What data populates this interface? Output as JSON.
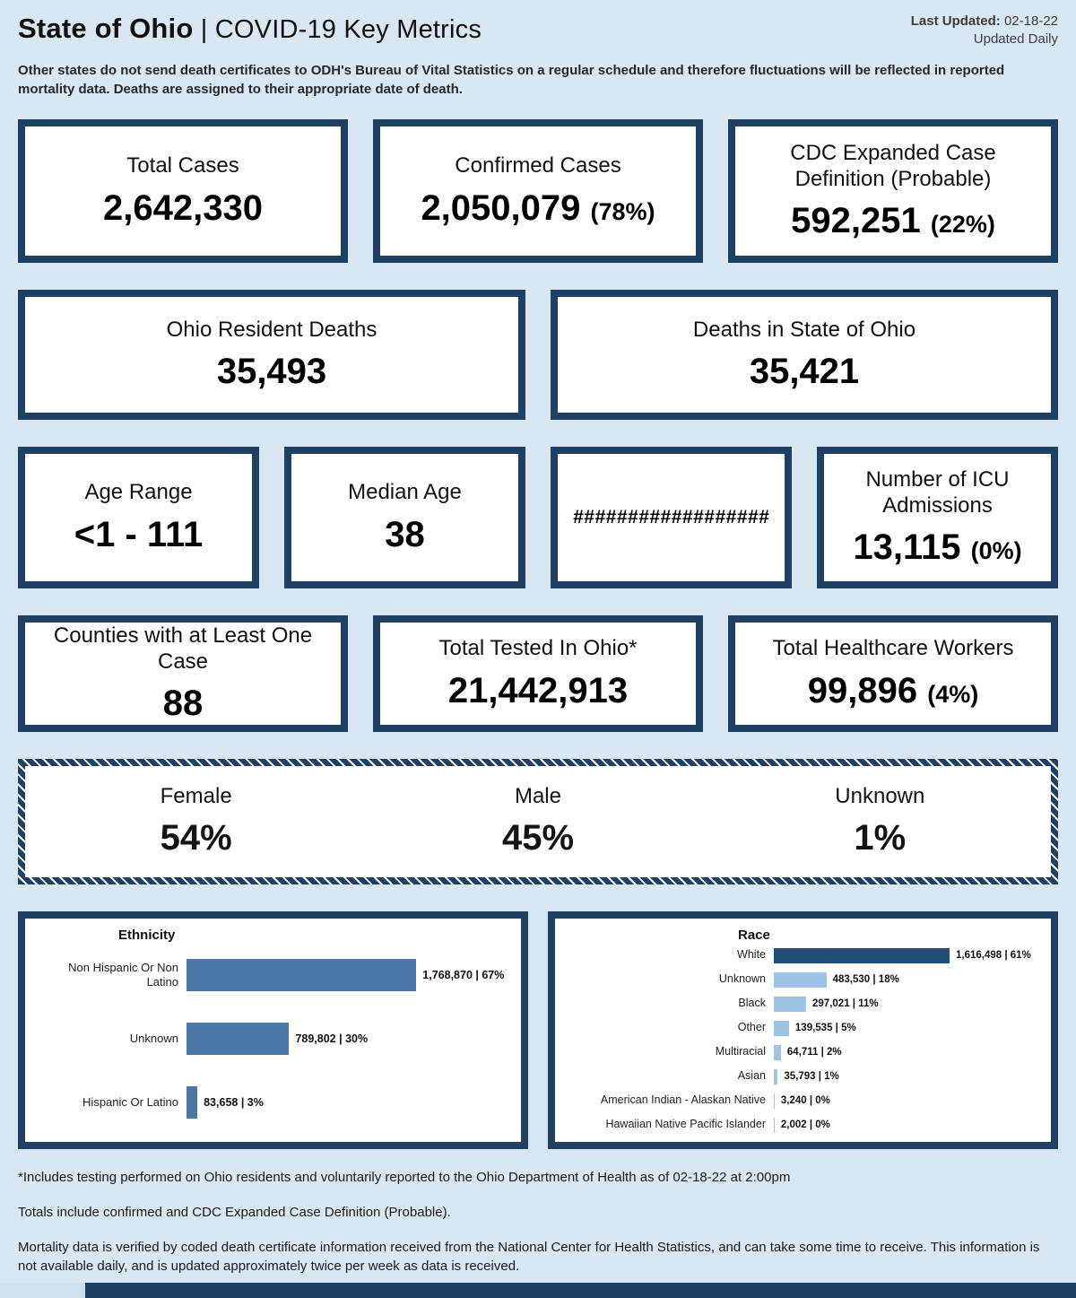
{
  "colors": {
    "navy": "#1e4163",
    "page_bg": "#d9e7f3",
    "card_bg": "#ffffff",
    "ethnicity_bar": "#4a76a8",
    "race_bar_dark": "#1f4e79",
    "race_bar_light": "#9dc3e6"
  },
  "header": {
    "title_bold": "State of Ohio",
    "title_sep": "|",
    "title_rest": "COVID-19 Key Metrics",
    "last_updated_label": "Last Updated:",
    "last_updated_value": "02-18-22",
    "updated_daily": "Updated Daily",
    "disclaimer": "Other states do not send death certificates to ODH's Bureau of Vital Statistics on a regular schedule and therefore fluctuations will be reflected in reported mortality data. Deaths are assigned to their appropriate date of death."
  },
  "cards": {
    "total_cases": {
      "title": "Total Cases",
      "value": "2,642,330"
    },
    "confirmed_cases": {
      "title": "Confirmed Cases",
      "value": "2,050,079",
      "pct": "(78%)"
    },
    "cdc_probable": {
      "title": "CDC Expanded Case Definition (Probable)",
      "value": "592,251",
      "pct": "(22%)"
    },
    "ohio_resident_deaths": {
      "title": "Ohio Resident Deaths",
      "value": "35,493"
    },
    "deaths_in_state": {
      "title": "Deaths in State of Ohio",
      "value": "35,421"
    },
    "age_range": {
      "title": "Age Range",
      "value": "<1 - 111"
    },
    "median_age": {
      "title": "Median Age",
      "value": "38"
    },
    "overflow": {
      "value": "##################"
    },
    "icu": {
      "title": "Number of ICU Admissions",
      "value": "13,115",
      "pct": "(0%)"
    },
    "counties": {
      "title": "Counties with at Least One Case",
      "value": "88"
    },
    "total_tested": {
      "title": "Total Tested In Ohio*",
      "value": "21,442,913"
    },
    "healthcare_workers": {
      "title": "Total Healthcare Workers",
      "value": "99,896",
      "pct": "(4%)"
    },
    "gender": [
      {
        "title": "Female",
        "value": "54%"
      },
      {
        "title": "Male",
        "value": "45%"
      },
      {
        "title": "Unknown",
        "value": "1%"
      }
    ]
  },
  "chart_data": [
    {
      "type": "bar",
      "orientation": "horizontal",
      "title": "Ethnicity",
      "categories": [
        "Non Hispanic Or Non Latino",
        "Unknown",
        "Hispanic Or Latino"
      ],
      "values": [
        1768870,
        789802,
        83658
      ],
      "percents": [
        67,
        30,
        3
      ],
      "labels": [
        "1,768,870 | 67%",
        "789,802 | 30%",
        "83,658 | 3%"
      ],
      "bar_color": "#4a76a8",
      "legend": "none",
      "grid": "off"
    },
    {
      "type": "bar",
      "orientation": "horizontal",
      "title": "Race",
      "categories": [
        "White",
        "Unknown",
        "Black",
        "Other",
        "Multiracial",
        "Asian",
        "American Indian - Alaskan Native",
        "Hawaiian Native Pacific Islander"
      ],
      "values": [
        1616498,
        483530,
        297021,
        139535,
        64711,
        35793,
        3240,
        2002
      ],
      "percents": [
        61,
        18,
        11,
        5,
        2,
        1,
        0,
        0
      ],
      "labels": [
        "1,616,498 | 61%",
        "483,530 | 18%",
        "297,021 | 11%",
        "139,535 | 5%",
        "64,711 | 2%",
        "35,793 | 1%",
        "3,240 | 0%",
        "2,002 | 0%"
      ],
      "bar_colors": [
        "#1f4e79",
        "#9dc3e6",
        "#9dc3e6",
        "#9dc3e6",
        "#9dc3e6",
        "#9dc3e6",
        "#9dc3e6",
        "#9dc3e6"
      ],
      "legend": "none",
      "grid": "off"
    }
  ],
  "footnotes": [
    "*Includes testing performed on Ohio residents and voluntarily reported to the Ohio Department of Health as of 02-18-22 at 2:00pm",
    "Totals include confirmed and CDC Expanded Case Definition (Probable).",
    "Mortality data is verified by coded death certificate information received from the National Center for Health Statistics, and can take some time to receive. This information is not available daily, and is updated approximately twice per week as data is received."
  ]
}
